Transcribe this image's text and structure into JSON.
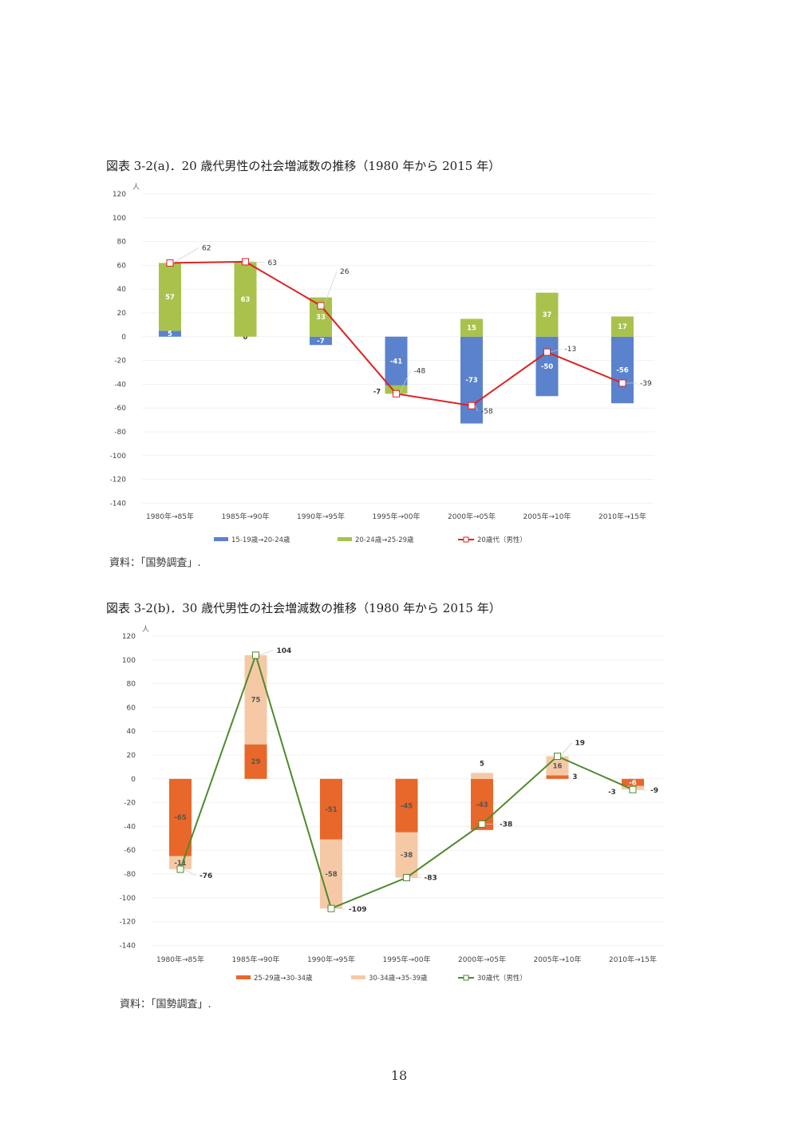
{
  "colors": {
    "blue": "#5b82cc",
    "green": "#a9c24c",
    "red_line": "#dd2222",
    "orange": "#e8672a",
    "peach": "#f6c9a6",
    "green_line": "#4f8a2c"
  },
  "page_number": "18",
  "charts": [
    {
      "title": "図表 3-2(a)．20 歳代男性の社会増減数の推移（1980 年から 2015 年）",
      "source": "資料：「国勢調査」.",
      "chart_data": {
        "type": "bar",
        "stacked": true,
        "unit": "人",
        "categories": [
          "1980年→85年",
          "1985年→90年",
          "1990年→95年",
          "1995年→00年",
          "2000年→05年",
          "2005年→10年",
          "2010年→15年"
        ],
        "ylim": [
          -140,
          120
        ],
        "yticks": [
          120,
          100,
          80,
          60,
          40,
          20,
          0,
          -20,
          -40,
          -60,
          -80,
          -100,
          -120,
          -140
        ],
        "series": [
          {
            "name": "15-19歳→20-24歳",
            "kind": "bar",
            "color": "blue",
            "values": [
              5,
              0,
              -7,
              -41,
              -73,
              -50,
              -56
            ],
            "labels": [
              "5",
              "0",
              "-7",
              "-41",
              "-73",
              "-50",
              "-56"
            ]
          },
          {
            "name": "20-24歳→25-29歳",
            "kind": "bar",
            "color": "green",
            "values": [
              57,
              63,
              33,
              -7,
              15,
              37,
              17
            ],
            "labels": [
              "57",
              "63",
              "33",
              "-7",
              "15",
              "37",
              "17"
            ]
          },
          {
            "name": "20歳代（男性）",
            "kind": "line",
            "color": "red_line",
            "values": [
              62,
              63,
              26,
              -48,
              -58,
              -13,
              -39
            ],
            "labels": [
              "62",
              "63",
              "26",
              "-48",
              "-58",
              "-13",
              "-39"
            ]
          }
        ]
      }
    },
    {
      "title": "図表 3-2(b)．30 歳代男性の社会増減数の推移（1980 年から 2015 年）",
      "source": "資料：「国勢調査」.",
      "chart_data": {
        "type": "bar",
        "stacked": true,
        "unit": "人",
        "categories": [
          "1980年→85年",
          "1985年→90年",
          "1990年→95年",
          "1995年→00年",
          "2000年→05年",
          "2005年→10年",
          "2010年→15年"
        ],
        "ylim": [
          -140,
          120
        ],
        "yticks": [
          120,
          100,
          80,
          60,
          40,
          20,
          0,
          -20,
          -40,
          -60,
          -80,
          -100,
          -120,
          -140
        ],
        "series": [
          {
            "name": "25-29歳→30-34歳",
            "kind": "bar",
            "color": "orange",
            "values": [
              -65,
              29,
              -51,
              -45,
              -43,
              3,
              -6
            ],
            "labels": [
              "-65",
              "29",
              "-51",
              "-45",
              "-43",
              "3",
              "-6"
            ]
          },
          {
            "name": "30-34歳→35-39歳",
            "kind": "bar",
            "color": "peach",
            "values": [
              -11,
              75,
              -58,
              -38,
              5,
              16,
              -3
            ],
            "labels": [
              "-11",
              "75",
              "-58",
              "-38",
              "5",
              "16",
              "-3"
            ]
          },
          {
            "name": "30歳代（男性）",
            "kind": "line",
            "color": "green_line",
            "values": [
              -76,
              104,
              -109,
              -83,
              -38,
              19,
              -9
            ],
            "labels": [
              "-76",
              "104",
              "-109",
              "-83",
              "-38",
              "19",
              "-9"
            ]
          }
        ]
      }
    }
  ]
}
